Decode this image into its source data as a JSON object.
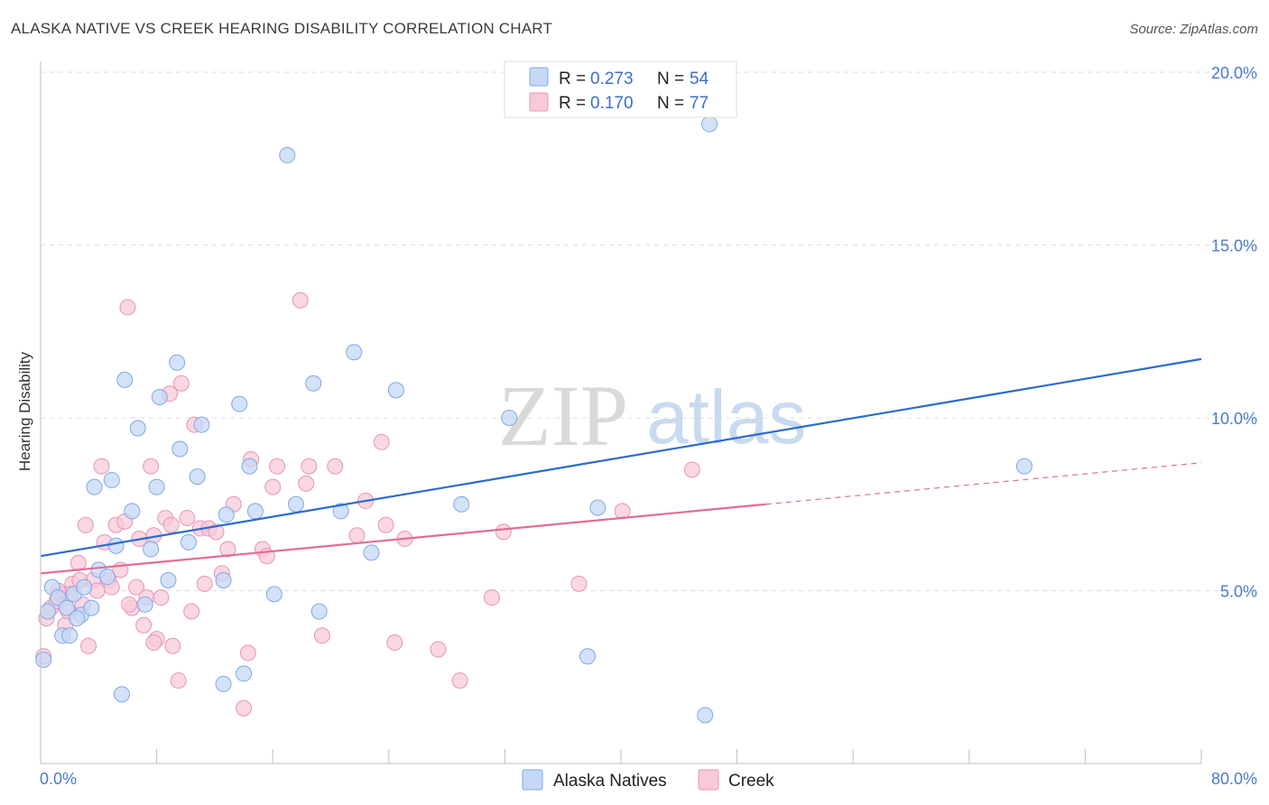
{
  "title": "ALASKA NATIVE VS CREEK HEARING DISABILITY CORRELATION CHART",
  "source": "Source: ZipAtlas.com",
  "watermark": {
    "zip": "ZIP",
    "atlas": "atlas"
  },
  "chart_data": {
    "type": "scatter",
    "title": "ALASKA NATIVE VS CREEK HEARING DISABILITY CORRELATION CHART",
    "xlabel": "",
    "ylabel": "Hearing Disability",
    "xlim": [
      0,
      80
    ],
    "ylim": [
      0,
      20
    ],
    "x_tick_labels": {
      "min": "0.0%",
      "max": "80.0%"
    },
    "y_ticks": [
      5,
      10,
      15,
      20
    ],
    "y_tick_labels": [
      "5.0%",
      "10.0%",
      "15.0%",
      "20.0%"
    ],
    "grid": true,
    "legend_placement": "top-center",
    "bottom_legend": [
      "Alaska Natives",
      "Creek"
    ],
    "series": [
      {
        "name": "Alaska Natives",
        "color": "#7fa8e6",
        "fill": "#c5d8f5",
        "line_color": "#2a6ccc",
        "R": "0.273",
        "N": "54",
        "trend": [
          [
            0,
            6.0
          ],
          [
            80,
            11.7
          ]
        ],
        "points": [
          [
            0.2,
            3.0
          ],
          [
            0.5,
            4.4
          ],
          [
            0.8,
            5.1
          ],
          [
            1.2,
            4.8
          ],
          [
            1.5,
            3.7
          ],
          [
            1.8,
            4.5
          ],
          [
            2.0,
            3.7
          ],
          [
            2.3,
            4.9
          ],
          [
            2.8,
            4.3
          ],
          [
            3.0,
            5.1
          ],
          [
            3.5,
            4.5
          ],
          [
            3.7,
            8.0
          ],
          [
            4.0,
            5.6
          ],
          [
            4.6,
            5.4
          ],
          [
            4.9,
            8.2
          ],
          [
            5.2,
            6.3
          ],
          [
            5.8,
            11.1
          ],
          [
            6.3,
            7.3
          ],
          [
            6.7,
            9.7
          ],
          [
            7.2,
            4.6
          ],
          [
            7.6,
            6.2
          ],
          [
            8.0,
            8.0
          ],
          [
            8.2,
            10.6
          ],
          [
            8.8,
            5.3
          ],
          [
            9.4,
            11.6
          ],
          [
            9.6,
            9.1
          ],
          [
            10.2,
            6.4
          ],
          [
            10.8,
            8.3
          ],
          [
            11.1,
            9.8
          ],
          [
            12.6,
            5.3
          ],
          [
            12.8,
            7.2
          ],
          [
            13.7,
            10.4
          ],
          [
            14.0,
            2.6
          ],
          [
            14.4,
            8.6
          ],
          [
            14.8,
            7.3
          ],
          [
            16.1,
            4.9
          ],
          [
            17.0,
            17.6
          ],
          [
            17.6,
            7.5
          ],
          [
            18.8,
            11.0
          ],
          [
            19.2,
            4.4
          ],
          [
            20.7,
            7.3
          ],
          [
            21.6,
            11.9
          ],
          [
            22.8,
            6.1
          ],
          [
            24.5,
            10.8
          ],
          [
            29.0,
            7.5
          ],
          [
            32.3,
            10.0
          ],
          [
            37.7,
            3.1
          ],
          [
            38.4,
            7.4
          ],
          [
            46.1,
            18.5
          ],
          [
            45.8,
            1.4
          ],
          [
            67.8,
            8.6
          ],
          [
            5.6,
            2.0
          ],
          [
            12.6,
            2.3
          ],
          [
            2.5,
            4.2
          ]
        ]
      },
      {
        "name": "Creek",
        "color": "#e895b3",
        "fill": "#f7c9d9",
        "line_color": "#e06c99",
        "R": "0.170",
        "N": "77",
        "trend": [
          [
            0,
            5.5
          ],
          [
            50,
            7.5
          ]
        ],
        "trend_extension": [
          [
            50,
            7.5
          ],
          [
            80,
            8.7
          ]
        ],
        "points": [
          [
            0.2,
            3.1
          ],
          [
            0.4,
            4.2
          ],
          [
            0.7,
            4.5
          ],
          [
            1.1,
            4.7
          ],
          [
            1.4,
            4.9
          ],
          [
            1.7,
            4.0
          ],
          [
            1.9,
            4.4
          ],
          [
            2.2,
            5.2
          ],
          [
            2.6,
            5.8
          ],
          [
            2.9,
            4.6
          ],
          [
            3.1,
            6.9
          ],
          [
            3.3,
            3.4
          ],
          [
            3.6,
            5.3
          ],
          [
            3.9,
            5.0
          ],
          [
            4.2,
            8.6
          ],
          [
            4.4,
            6.4
          ],
          [
            4.7,
            5.3
          ],
          [
            4.9,
            5.1
          ],
          [
            5.2,
            6.9
          ],
          [
            5.5,
            5.6
          ],
          [
            5.8,
            7.0
          ],
          [
            6.0,
            13.2
          ],
          [
            6.3,
            4.5
          ],
          [
            6.6,
            5.1
          ],
          [
            6.8,
            6.5
          ],
          [
            7.1,
            4.0
          ],
          [
            7.3,
            4.8
          ],
          [
            7.6,
            8.6
          ],
          [
            7.8,
            6.6
          ],
          [
            8.0,
            3.6
          ],
          [
            8.3,
            4.8
          ],
          [
            8.6,
            7.1
          ],
          [
            8.9,
            10.7
          ],
          [
            9.1,
            3.4
          ],
          [
            9.5,
            2.4
          ],
          [
            9.7,
            11.0
          ],
          [
            10.1,
            7.1
          ],
          [
            10.4,
            4.4
          ],
          [
            10.6,
            9.8
          ],
          [
            11.0,
            6.8
          ],
          [
            11.3,
            5.2
          ],
          [
            11.6,
            6.8
          ],
          [
            12.1,
            6.7
          ],
          [
            12.5,
            5.5
          ],
          [
            12.9,
            6.2
          ],
          [
            13.3,
            7.5
          ],
          [
            14.0,
            1.6
          ],
          [
            14.3,
            3.2
          ],
          [
            14.5,
            8.8
          ],
          [
            15.3,
            6.2
          ],
          [
            15.6,
            6.0
          ],
          [
            16.0,
            8.0
          ],
          [
            16.3,
            8.6
          ],
          [
            17.9,
            13.4
          ],
          [
            18.3,
            8.1
          ],
          [
            18.5,
            8.6
          ],
          [
            19.4,
            3.7
          ],
          [
            20.3,
            8.6
          ],
          [
            21.8,
            6.6
          ],
          [
            22.4,
            7.6
          ],
          [
            23.5,
            9.3
          ],
          [
            23.8,
            6.9
          ],
          [
            24.4,
            3.5
          ],
          [
            25.1,
            6.5
          ],
          [
            27.4,
            3.3
          ],
          [
            28.9,
            2.4
          ],
          [
            31.1,
            4.8
          ],
          [
            31.9,
            6.7
          ],
          [
            37.1,
            5.2
          ],
          [
            44.9,
            8.5
          ],
          [
            40.1,
            7.3
          ],
          [
            7.8,
            3.5
          ],
          [
            2.7,
            5.3
          ],
          [
            6.1,
            4.6
          ],
          [
            2.0,
            4.9
          ],
          [
            1.2,
            5.0
          ],
          [
            9.0,
            6.9
          ]
        ]
      }
    ]
  }
}
